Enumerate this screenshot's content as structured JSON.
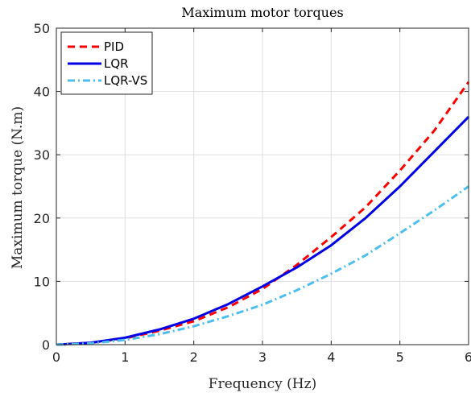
{
  "chart_data": {
    "type": "line",
    "title": "Maximum motor torques",
    "xlabel": "Frequency (Hz)",
    "ylabel": "Maximum torque (N.m)",
    "xlim": [
      0,
      6
    ],
    "ylim": [
      0,
      50
    ],
    "xticks": [
      0,
      1,
      2,
      3,
      4,
      5,
      6
    ],
    "yticks": [
      0,
      10,
      20,
      30,
      40,
      50
    ],
    "grid": true,
    "legend_position": "top-left",
    "x": [
      0,
      0.5,
      1,
      1.5,
      2,
      2.5,
      3,
      3.5,
      4,
      4.5,
      5,
      5.5,
      6
    ],
    "series": [
      {
        "name": "PID",
        "color": "#ff0000",
        "dash": "dashed",
        "values": [
          0,
          0.3,
          1.0,
          2.2,
          3.7,
          5.9,
          8.8,
          12.6,
          17.0,
          21.7,
          27.5,
          33.8,
          41.5
        ]
      },
      {
        "name": "LQR",
        "color": "#0000e6",
        "dash": "solid",
        "values": [
          0,
          0.3,
          1.1,
          2.4,
          4.1,
          6.4,
          9.2,
          12.2,
          15.7,
          20.0,
          25.0,
          30.5,
          36.0
        ]
      },
      {
        "name": "LQR-VS",
        "color": "#4dbeee",
        "dash": "dashdot",
        "values": [
          0,
          0.2,
          0.75,
          1.65,
          2.9,
          4.5,
          6.3,
          8.6,
          11.2,
          14.1,
          17.6,
          21.2,
          25.0
        ]
      }
    ]
  }
}
